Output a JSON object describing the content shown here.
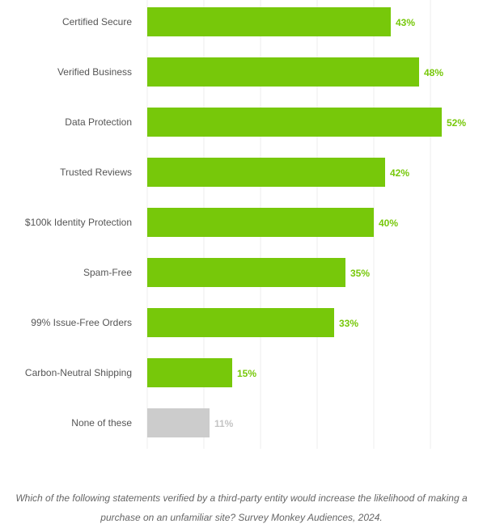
{
  "chart_data": {
    "type": "bar",
    "orientation": "horizontal",
    "categories": [
      "Certified Secure",
      "Verified Business",
      "Data Protection",
      "Trusted Reviews",
      "$100k Identity Protection",
      "Spam-Free",
      "99% Issue-Free Orders",
      "Carbon-Neutral Shipping",
      "None of these"
    ],
    "values": [
      43,
      48,
      52,
      42,
      40,
      35,
      33,
      15,
      11
    ],
    "value_labels": [
      "43%",
      "48%",
      "52%",
      "42%",
      "40%",
      "35%",
      "33%",
      "15%",
      "11%"
    ],
    "xlim": [
      0,
      60
    ],
    "grid": true,
    "legend": "none",
    "colors": {
      "bar": "#77c80a",
      "bar_label": "#77c80a",
      "muted_bar": "#cccccc",
      "muted_label": "#c4c4c4"
    },
    "muted_category": "None of these"
  },
  "caption": "Which of the following statements verified by a third-party entity would increase the likelihood of making a purchase on an unfamiliar site? Survey Monkey Audiences, 2024."
}
